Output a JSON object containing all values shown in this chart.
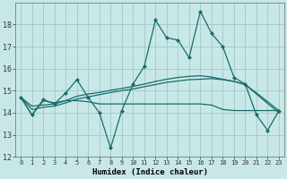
{
  "xlabel": "Humidex (Indice chaleur)",
  "xlim": [
    -0.5,
    23.5
  ],
  "ylim": [
    12,
    19
  ],
  "yticks": [
    12,
    13,
    14,
    15,
    16,
    17,
    18
  ],
  "xticks": [
    0,
    1,
    2,
    3,
    4,
    5,
    6,
    7,
    8,
    9,
    10,
    11,
    12,
    13,
    14,
    15,
    16,
    17,
    18,
    19,
    20,
    21,
    22,
    23
  ],
  "bg_color": "#c8e8e8",
  "grid_color": "#a8cccc",
  "line_color": "#1a6b6b",
  "line1": [
    14.7,
    13.9,
    14.6,
    14.4,
    14.9,
    15.5,
    14.7,
    14.0,
    12.4,
    14.1,
    15.3,
    16.1,
    18.2,
    17.4,
    17.3,
    16.5,
    18.6,
    17.6,
    17.0,
    15.6,
    15.3,
    13.9,
    13.2,
    14.1
  ],
  "line2": [
    14.7,
    13.9,
    14.55,
    14.45,
    14.55,
    14.55,
    14.5,
    14.4,
    14.4,
    14.4,
    14.4,
    14.4,
    14.4,
    14.4,
    14.4,
    14.4,
    14.4,
    14.35,
    14.15,
    14.1,
    14.1,
    14.1,
    14.1,
    14.1
  ],
  "line3": [
    14.7,
    14.3,
    14.35,
    14.4,
    14.55,
    14.75,
    14.85,
    14.92,
    15.02,
    15.1,
    15.2,
    15.3,
    15.42,
    15.52,
    15.6,
    15.65,
    15.68,
    15.62,
    15.52,
    15.42,
    15.28,
    14.9,
    14.5,
    14.1
  ],
  "line4": [
    14.7,
    14.15,
    14.25,
    14.3,
    14.45,
    14.62,
    14.72,
    14.82,
    14.92,
    15.0,
    15.08,
    15.18,
    15.28,
    15.38,
    15.44,
    15.5,
    15.52,
    15.55,
    15.5,
    15.42,
    15.28,
    14.85,
    14.42,
    14.0
  ],
  "line_width": 0.9,
  "marker_size": 2.5
}
